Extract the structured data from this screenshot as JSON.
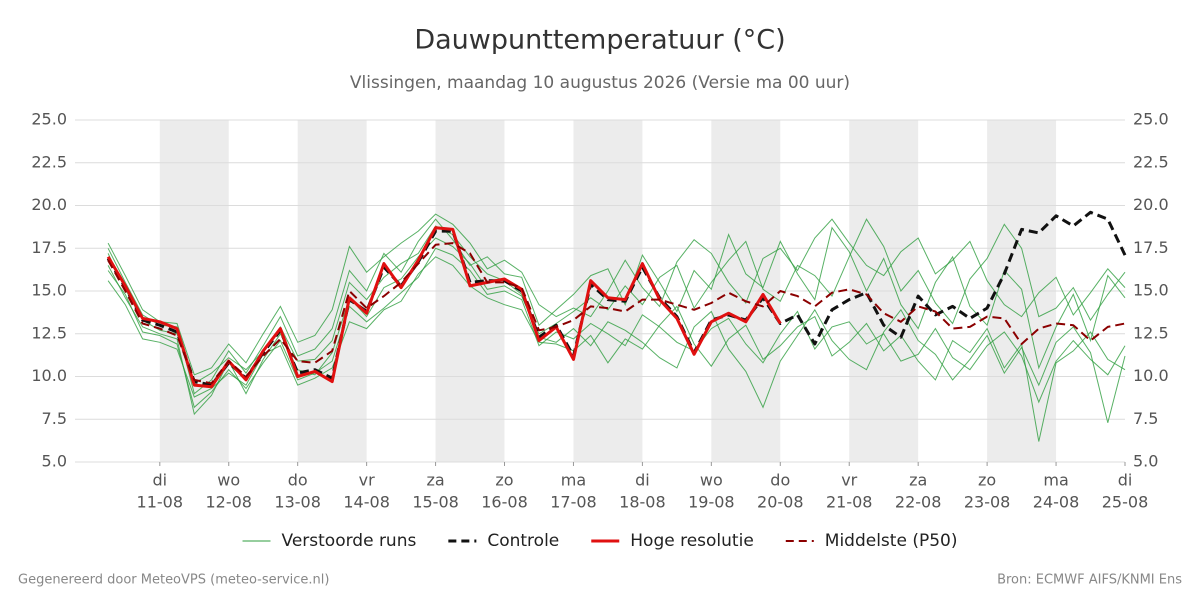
{
  "chart_data": {
    "type": "line",
    "title": "Dauwpunttemperatuur (°C)",
    "subtitle": "Vlissingen, maandag 10 augustus 2026 (Versie ma 00 uur)",
    "footer_left": "Gegenereerd door MeteoVPS (meteo-service.nl)",
    "footer_right": "Bron: ECMWF AIFS/KNMI Ens",
    "legend": "bottom",
    "grid": true,
    "xlim": [
      9.77,
      25
    ],
    "xticks": [
      {
        "value": 11,
        "label": "11-08"
      },
      {
        "value": 12,
        "label": "12-08"
      },
      {
        "value": 13,
        "label": "13-08"
      },
      {
        "value": 14,
        "label": "14-08"
      },
      {
        "value": 15,
        "label": "15-08"
      },
      {
        "value": 16,
        "label": "16-08"
      },
      {
        "value": 17,
        "label": "17-08"
      },
      {
        "value": 18,
        "label": "18-08"
      },
      {
        "value": 19,
        "label": "19-08"
      },
      {
        "value": 20,
        "label": "20-08"
      },
      {
        "value": 21,
        "label": "21-08"
      },
      {
        "value": 22,
        "label": "22-08"
      },
      {
        "value": 23,
        "label": "23-08"
      },
      {
        "value": 24,
        "label": "24-08"
      },
      {
        "value": 25,
        "label": "25-08"
      }
    ],
    "xtick_weekdays": [
      "di",
      "wo",
      "do",
      "vr",
      "za",
      "zo",
      "ma",
      "di",
      "wo",
      "do",
      "vr",
      "za",
      "zo",
      "ma",
      "di"
    ],
    "ylim": [
      5,
      25
    ],
    "yticks": [
      {
        "value": 5,
        "label": "5.0"
      },
      {
        "value": 7.5,
        "label": "7.5"
      },
      {
        "value": 10,
        "label": "10.0"
      },
      {
        "value": 12.5,
        "label": "12.5"
      },
      {
        "value": 15,
        "label": "15.0"
      },
      {
        "value": 17.5,
        "label": "17.5"
      },
      {
        "value": 20,
        "label": "20.0"
      },
      {
        "value": 22.5,
        "label": "22.5"
      },
      {
        "value": 25,
        "label": "25.0"
      }
    ],
    "x": [
      10.25,
      10.5,
      10.75,
      11,
      11.25,
      11.5,
      11.75,
      12,
      12.25,
      12.5,
      12.75,
      13,
      13.25,
      13.5,
      13.75,
      14,
      14.25,
      14.5,
      14.75,
      15,
      15.25,
      15.5,
      15.75,
      16,
      16.25,
      16.5,
      16.75,
      17,
      17.25,
      17.5,
      17.75,
      18,
      18.25,
      18.5,
      18.75,
      19,
      19.25,
      19.5,
      19.75,
      20,
      20.25,
      20.5,
      20.75,
      21,
      21.25,
      21.5,
      21.75,
      22,
      22.25,
      22.5,
      22.75,
      23,
      23.25,
      23.5,
      23.75,
      24,
      24.25,
      24.5,
      24.75,
      25
    ],
    "ensemble": {
      "name": "Verstoorde runs",
      "color": "#2e9e3e",
      "members": [
        [
          17.5,
          15.5,
          13.6,
          13.0,
          12.9,
          9.0,
          9.8,
          11.5,
          10.2,
          11.8,
          13.5,
          11.2,
          11.6,
          12.8,
          16.2,
          15.0,
          17.2,
          16.1,
          17.9,
          19.2,
          18.0,
          16.5,
          17.0,
          16.0,
          15.8,
          13.0,
          13.9,
          14.8,
          15.9,
          16.3,
          14.2,
          17.1,
          15.5,
          13.8,
          16.2,
          15.1,
          18.3,
          16.0,
          15.2,
          17.9,
          16.0,
          14.5,
          18.7,
          17.3,
          15.0,
          16.9,
          14.2,
          12.8,
          15.5,
          17.0,
          14.1,
          13.0,
          16.2,
          15.1,
          10.5,
          12.9,
          14.8,
          12.1,
          15.9,
          14.6
        ],
        [
          16.2,
          14.8,
          12.6,
          12.4,
          11.9,
          8.2,
          9.1,
          10.4,
          9.3,
          10.8,
          12.1,
          9.8,
          10.2,
          10.9,
          14.1,
          13.2,
          14.0,
          14.9,
          15.8,
          17.5,
          17.1,
          16.2,
          14.8,
          15.0,
          14.5,
          11.8,
          12.6,
          12.2,
          13.1,
          12.5,
          11.8,
          13.6,
          12.9,
          12.0,
          11.5,
          12.8,
          13.4,
          11.9,
          10.8,
          12.5,
          13.8,
          11.6,
          12.9,
          13.2,
          11.9,
          12.5,
          10.9,
          11.3,
          12.8,
          11.1,
          10.4,
          11.8,
          12.6,
          11.2,
          8.5,
          10.9,
          12.1,
          11.0,
          10.1,
          11.8
        ],
        [
          17.8,
          15.9,
          13.9,
          13.2,
          13.1,
          10.1,
          10.5,
          11.9,
          10.8,
          12.5,
          14.1,
          12.0,
          12.4,
          13.9,
          17.6,
          16.1,
          17.0,
          17.8,
          18.5,
          19.5,
          18.9,
          17.8,
          16.3,
          16.8,
          16.1,
          14.2,
          13.5,
          14.0,
          13.5,
          15.0,
          16.8,
          15.2,
          14.1,
          16.7,
          18.0,
          17.2,
          15.5,
          14.3,
          16.9,
          17.5,
          16.2,
          18.1,
          19.2,
          17.8,
          16.5,
          15.9,
          17.3,
          18.1,
          16.0,
          16.8,
          17.9,
          15.6,
          14.2,
          13.5,
          14.9,
          15.8,
          13.6,
          14.9,
          16.3,
          15.2
        ],
        [
          15.6,
          14.2,
          12.2,
          12.0,
          11.6,
          8.8,
          9.3,
          10.2,
          9.5,
          11.3,
          11.8,
          9.5,
          9.9,
          10.5,
          13.2,
          12.8,
          13.9,
          14.4,
          16.0,
          17.0,
          16.5,
          15.3,
          14.6,
          14.2,
          13.9,
          12.0,
          11.9,
          11.5,
          12.4,
          10.8,
          12.2,
          11.6,
          13.0,
          14.1,
          11.9,
          10.6,
          12.2,
          13.0,
          11.0,
          11.8,
          12.9,
          13.5,
          11.2,
          12.0,
          13.1,
          11.5,
          12.4,
          10.9,
          9.8,
          12.1,
          11.4,
          12.8,
          10.5,
          11.9,
          6.2,
          10.8,
          11.5,
          12.6,
          11.0,
          10.4
        ],
        [
          17.2,
          15.1,
          13.3,
          12.7,
          12.5,
          9.6,
          10.2,
          11.1,
          10.4,
          11.5,
          12.9,
          10.9,
          11.0,
          12.1,
          15.5,
          14.5,
          15.8,
          16.6,
          17.2,
          18.8,
          18.3,
          17.0,
          16.0,
          15.6,
          14.8,
          12.5,
          13.1,
          13.8,
          14.6,
          13.9,
          15.3,
          14.2,
          15.8,
          16.5,
          14.0,
          15.5,
          16.8,
          17.9,
          15.1,
          14.4,
          16.5,
          15.9,
          14.7,
          17.0,
          19.2,
          17.6,
          15.0,
          16.2,
          14.3,
          13.1,
          15.7,
          16.9,
          18.9,
          17.5,
          13.5,
          14.0,
          15.2,
          13.3,
          14.8,
          16.1
        ],
        [
          16.5,
          14.6,
          12.9,
          12.5,
          12.2,
          7.8,
          8.9,
          10.9,
          9.0,
          11.0,
          12.5,
          10.4,
          10.1,
          11.4,
          14.6,
          13.5,
          15.2,
          15.7,
          17.0,
          18.1,
          17.6,
          16.6,
          15.1,
          15.3,
          14.7,
          12.3,
          12.0,
          12.8,
          11.8,
          13.2,
          12.7,
          12.0,
          11.1,
          10.5,
          12.9,
          13.8,
          11.6,
          10.3,
          8.2,
          10.9,
          12.4,
          13.9,
          12.1,
          11.0,
          10.4,
          12.6,
          13.9,
          12.1,
          11.3,
          9.8,
          11.0,
          12.4,
          10.2,
          11.7,
          9.5,
          12.0,
          12.9,
          11.4,
          7.3,
          11.2
        ]
      ]
    },
    "series": [
      {
        "name": "Controle",
        "color": "#111111",
        "dashed": true,
        "width": 3,
        "values": [
          16.9,
          15.2,
          13.3,
          13.0,
          12.6,
          9.7,
          9.5,
          10.8,
          9.9,
          11.4,
          12.7,
          10.2,
          10.4,
          9.9,
          14.5,
          13.8,
          16.4,
          15.3,
          16.7,
          18.5,
          18.5,
          15.5,
          15.6,
          15.6,
          15.0,
          12.3,
          13.0,
          11.2,
          15.4,
          14.5,
          14.4,
          16.4,
          14.6,
          13.5,
          11.4,
          13.3,
          13.6,
          13.3,
          14.6,
          13.1,
          13.6,
          11.9,
          13.9,
          14.5,
          14.9,
          13.0,
          12.3,
          14.7,
          13.6,
          14.1,
          13.4,
          14.0,
          16.0,
          18.6,
          18.4,
          19.4,
          18.8,
          19.6,
          19.2,
          17.1
        ]
      },
      {
        "name": "Hoge resolutie",
        "color": "#e01010",
        "dashed": false,
        "width": 3,
        "values": [
          17.0,
          15.3,
          13.4,
          13.2,
          12.8,
          9.5,
          9.4,
          10.9,
          9.8,
          11.5,
          12.8,
          10.0,
          10.3,
          9.7,
          14.6,
          13.7,
          16.6,
          15.2,
          16.8,
          18.7,
          18.6,
          15.3,
          15.5,
          15.7,
          15.1,
          12.1,
          12.9,
          11.0,
          15.6,
          14.6,
          14.5,
          16.6,
          14.5,
          13.4,
          11.3,
          13.2,
          13.7,
          13.2,
          14.8,
          13.1,
          null,
          null,
          null,
          null,
          null,
          null,
          null,
          null,
          null,
          null,
          null,
          null,
          null,
          null,
          null,
          null,
          null,
          null,
          null,
          null
        ]
      },
      {
        "name": "Middelste (P50)",
        "color": "#8b0000",
        "dashed": true,
        "width": 2,
        "values": [
          16.8,
          15.0,
          13.1,
          12.8,
          12.4,
          9.8,
          9.6,
          10.9,
          10.0,
          11.2,
          12.2,
          10.9,
          10.8,
          11.5,
          15.0,
          14.0,
          14.7,
          15.5,
          16.6,
          17.7,
          17.8,
          17.2,
          15.5,
          15.5,
          15.2,
          12.7,
          12.9,
          13.3,
          14.1,
          14.0,
          13.8,
          14.5,
          14.5,
          14.2,
          13.9,
          14.3,
          14.9,
          14.4,
          14.1,
          15.0,
          14.7,
          14.1,
          14.9,
          15.1,
          14.8,
          13.7,
          13.2,
          14.1,
          13.8,
          12.8,
          12.9,
          13.5,
          13.4,
          11.9,
          12.8,
          13.1,
          13.0,
          12.1,
          12.9,
          13.1
        ]
      }
    ]
  }
}
